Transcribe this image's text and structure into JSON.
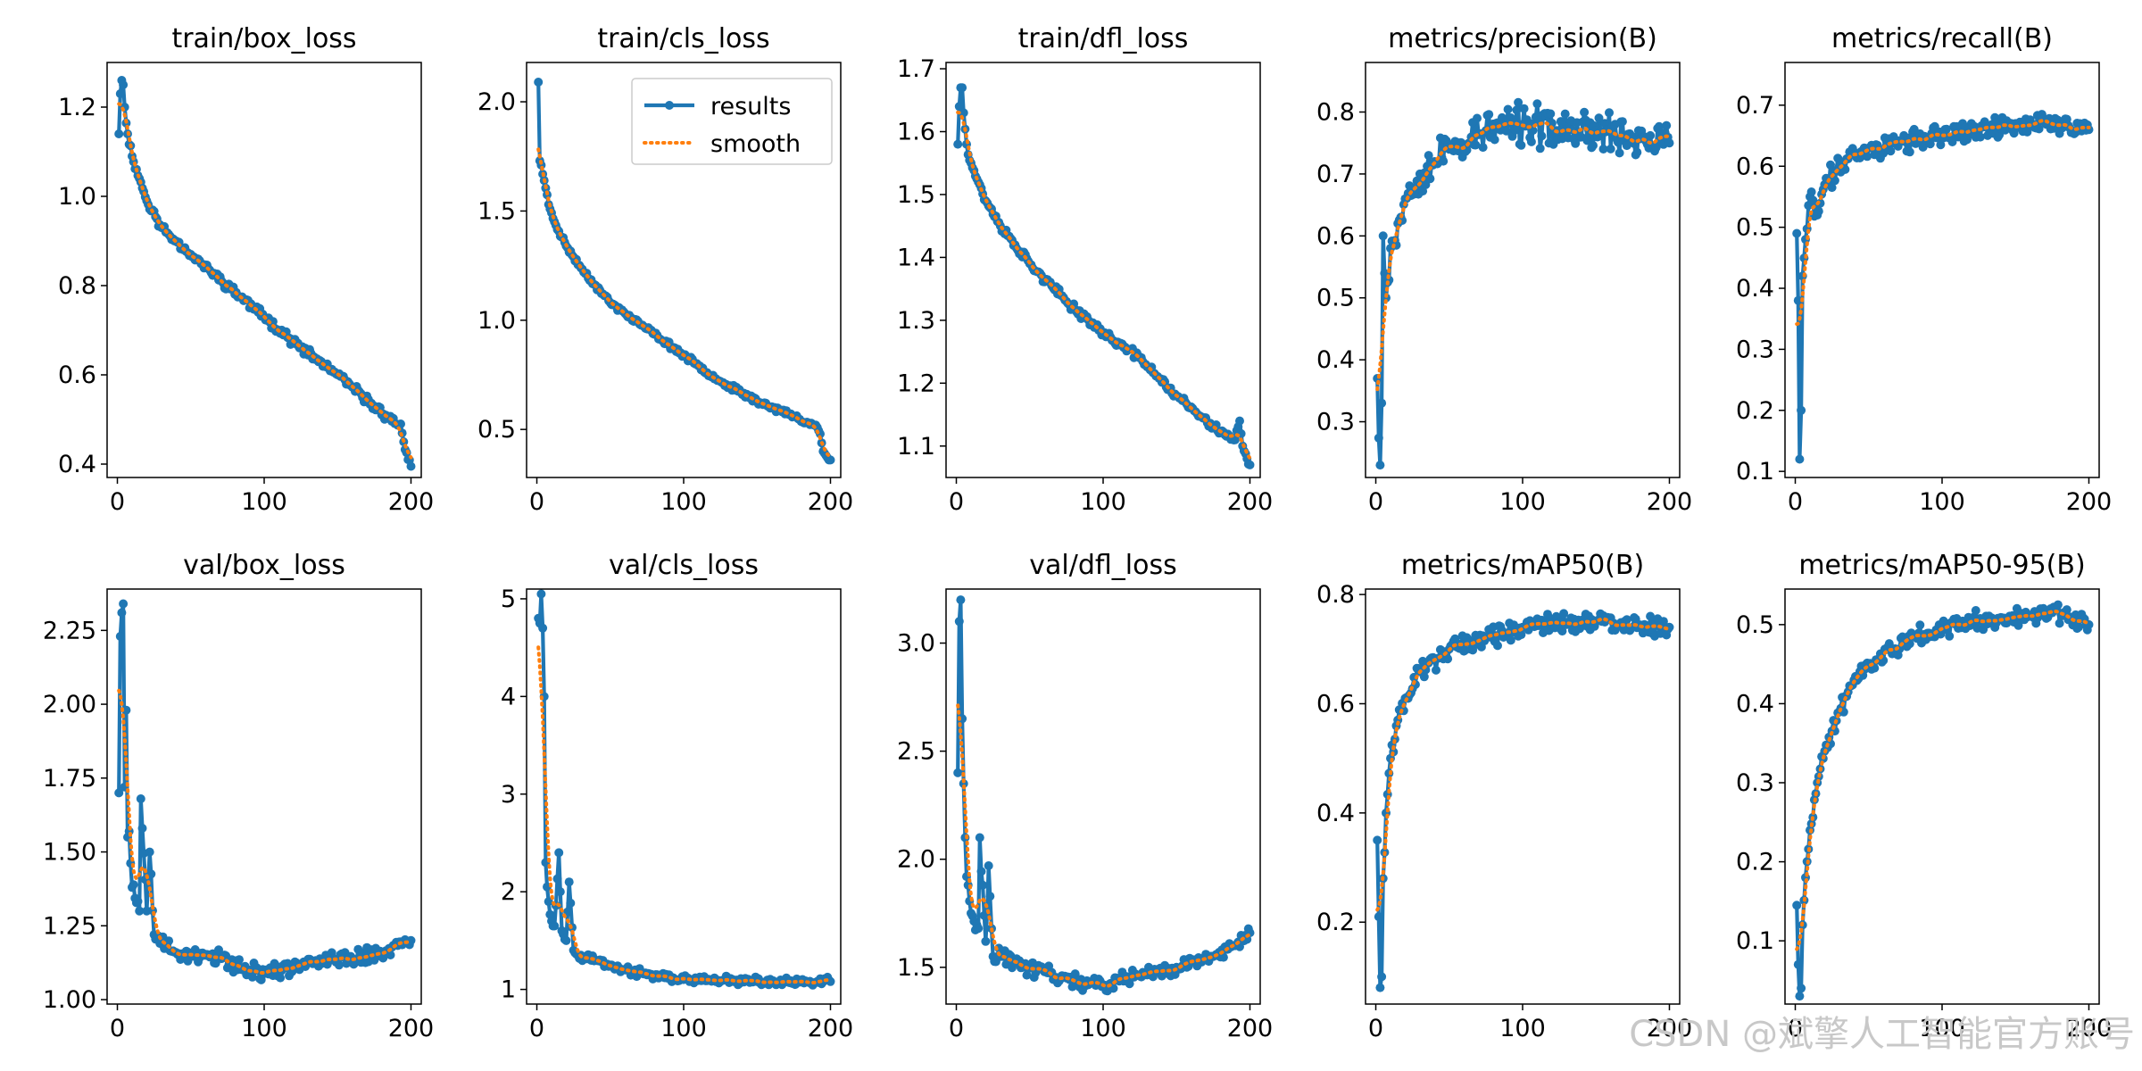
{
  "colors": {
    "results": "#1f77b4",
    "smooth": "#ff7f0e",
    "watermark": "#c8c8c8"
  },
  "legend": {
    "results_label": "results",
    "smooth_label": "smooth",
    "placement": "upper-right"
  },
  "watermark": "CSDN @斌擎人工智能官方账号",
  "chart_data": [
    {
      "id": "train-box-loss",
      "type": "line",
      "title": "train/box_loss",
      "xlim": [
        -7,
        207
      ],
      "ylim": [
        0.37,
        1.3
      ],
      "xticks": [
        0,
        100,
        200
      ],
      "yticks": [
        0.4,
        0.6,
        0.8,
        1.0,
        1.2
      ],
      "ytick_labels": [
        "0.4",
        "0.6",
        "0.8",
        "1.0",
        "1.2"
      ],
      "legend": false,
      "noise": 0.012,
      "seed": 11,
      "trend": [
        [
          1,
          1.14
        ],
        [
          2,
          1.23
        ],
        [
          3,
          1.26
        ],
        [
          4,
          1.25
        ],
        [
          5,
          1.2
        ],
        [
          7,
          1.14
        ],
        [
          10,
          1.09
        ],
        [
          15,
          1.04
        ],
        [
          20,
          0.99
        ],
        [
          30,
          0.93
        ],
        [
          40,
          0.9
        ],
        [
          50,
          0.87
        ],
        [
          75,
          0.8
        ],
        [
          100,
          0.73
        ],
        [
          125,
          0.66
        ],
        [
          150,
          0.6
        ],
        [
          175,
          0.53
        ],
        [
          190,
          0.49
        ],
        [
          193,
          0.49
        ],
        [
          195,
          0.45
        ],
        [
          198,
          0.41
        ],
        [
          200,
          0.395
        ]
      ]
    },
    {
      "id": "train-cls-loss",
      "type": "line",
      "title": "train/cls_loss",
      "xlim": [
        -7,
        207
      ],
      "ylim": [
        0.28,
        2.18
      ],
      "xticks": [
        0,
        100,
        200
      ],
      "yticks": [
        0.5,
        1.0,
        1.5,
        2.0
      ],
      "ytick_labels": [
        "0.5",
        "1.0",
        "1.5",
        "2.0"
      ],
      "legend": true,
      "noise": 0.015,
      "seed": 23,
      "trend": [
        [
          1,
          2.09
        ],
        [
          2,
          1.73
        ],
        [
          3,
          1.71
        ],
        [
          5,
          1.64
        ],
        [
          8,
          1.53
        ],
        [
          12,
          1.45
        ],
        [
          20,
          1.34
        ],
        [
          30,
          1.24
        ],
        [
          40,
          1.16
        ],
        [
          50,
          1.08
        ],
        [
          75,
          0.96
        ],
        [
          100,
          0.84
        ],
        [
          125,
          0.72
        ],
        [
          150,
          0.63
        ],
        [
          175,
          0.56
        ],
        [
          185,
          0.53
        ],
        [
          190,
          0.52
        ],
        [
          193,
          0.48
        ],
        [
          195,
          0.4
        ],
        [
          198,
          0.37
        ],
        [
          200,
          0.36
        ]
      ]
    },
    {
      "id": "train-dfl-loss",
      "type": "line",
      "title": "train/dfl_loss",
      "xlim": [
        -7,
        207
      ],
      "ylim": [
        1.05,
        1.71
      ],
      "xticks": [
        0,
        100,
        200
      ],
      "yticks": [
        1.1,
        1.2,
        1.3,
        1.4,
        1.5,
        1.6,
        1.7
      ],
      "ytick_labels": [
        "1.1",
        "1.2",
        "1.3",
        "1.4",
        "1.5",
        "1.6",
        "1.7"
      ],
      "legend": false,
      "noise": 0.008,
      "seed": 37,
      "trend": [
        [
          1,
          1.58
        ],
        [
          2,
          1.64
        ],
        [
          3,
          1.67
        ],
        [
          4,
          1.67
        ],
        [
          5,
          1.63
        ],
        [
          7,
          1.58
        ],
        [
          10,
          1.55
        ],
        [
          15,
          1.52
        ],
        [
          20,
          1.49
        ],
        [
          30,
          1.45
        ],
        [
          40,
          1.42
        ],
        [
          50,
          1.39
        ],
        [
          75,
          1.33
        ],
        [
          100,
          1.28
        ],
        [
          125,
          1.24
        ],
        [
          150,
          1.18
        ],
        [
          175,
          1.13
        ],
        [
          190,
          1.11
        ],
        [
          193,
          1.14
        ],
        [
          195,
          1.1
        ],
        [
          198,
          1.08
        ],
        [
          200,
          1.07
        ]
      ]
    },
    {
      "id": "metrics-precision-b",
      "type": "line",
      "title": "metrics/precision(B)",
      "xlim": [
        -7,
        207
      ],
      "ylim": [
        0.21,
        0.88
      ],
      "xticks": [
        0,
        100,
        200
      ],
      "yticks": [
        0.3,
        0.4,
        0.5,
        0.6,
        0.7,
        0.8
      ],
      "ytick_labels": [
        "0.3",
        "0.4",
        "0.5",
        "0.6",
        "0.7",
        "0.8"
      ],
      "legend": false,
      "noise": 0.04,
      "seed": 53,
      "trend": [
        [
          1,
          0.37
        ],
        [
          3,
          0.23
        ],
        [
          4,
          0.33
        ],
        [
          5,
          0.6
        ],
        [
          7,
          0.5
        ],
        [
          10,
          0.58
        ],
        [
          15,
          0.62
        ],
        [
          20,
          0.66
        ],
        [
          30,
          0.7
        ],
        [
          40,
          0.72
        ],
        [
          50,
          0.74
        ],
        [
          75,
          0.77
        ],
        [
          100,
          0.78
        ],
        [
          125,
          0.77
        ],
        [
          150,
          0.77
        ],
        [
          175,
          0.76
        ],
        [
          200,
          0.75
        ]
      ]
    },
    {
      "id": "metrics-recall-b",
      "type": "line",
      "title": "metrics/recall(B)",
      "xlim": [
        -7,
        207
      ],
      "ylim": [
        0.09,
        0.77
      ],
      "xticks": [
        0,
        100,
        200
      ],
      "yticks": [
        0.1,
        0.2,
        0.3,
        0.4,
        0.5,
        0.6,
        0.7
      ],
      "ytick_labels": [
        "0.1",
        "0.2",
        "0.3",
        "0.4",
        "0.5",
        "0.6",
        "0.7"
      ],
      "legend": false,
      "noise": 0.022,
      "seed": 71,
      "trend": [
        [
          1,
          0.49
        ],
        [
          2,
          0.38
        ],
        [
          3,
          0.12
        ],
        [
          4,
          0.2
        ],
        [
          5,
          0.42
        ],
        [
          7,
          0.48
        ],
        [
          10,
          0.55
        ],
        [
          15,
          0.52
        ],
        [
          20,
          0.57
        ],
        [
          30,
          0.6
        ],
        [
          40,
          0.62
        ],
        [
          50,
          0.63
        ],
        [
          75,
          0.64
        ],
        [
          100,
          0.65
        ],
        [
          125,
          0.66
        ],
        [
          150,
          0.67
        ],
        [
          175,
          0.67
        ],
        [
          200,
          0.66
        ]
      ]
    },
    {
      "id": "val-box-loss",
      "type": "line",
      "title": "val/box_loss",
      "xlim": [
        -7,
        207
      ],
      "ylim": [
        0.985,
        2.39
      ],
      "xticks": [
        0,
        100,
        200
      ],
      "yticks": [
        1.0,
        1.25,
        1.5,
        1.75,
        2.0,
        2.25
      ],
      "ytick_labels": [
        "1.00",
        "1.25",
        "1.50",
        "1.75",
        "2.00",
        "2.25"
      ],
      "legend": false,
      "noise": 0.035,
      "seed": 89,
      "trend": [
        [
          1,
          1.7
        ],
        [
          2,
          2.23
        ],
        [
          3,
          2.31
        ],
        [
          4,
          2.34
        ],
        [
          5,
          1.72
        ],
        [
          6,
          1.98
        ],
        [
          7,
          1.55
        ],
        [
          8,
          1.57
        ],
        [
          10,
          1.38
        ],
        [
          15,
          1.3
        ],
        [
          16,
          1.68
        ],
        [
          20,
          1.3
        ],
        [
          22,
          1.5
        ],
        [
          25,
          1.22
        ],
        [
          30,
          1.2
        ],
        [
          40,
          1.16
        ],
        [
          50,
          1.15
        ],
        [
          60,
          1.15
        ],
        [
          70,
          1.14
        ],
        [
          80,
          1.12
        ],
        [
          90,
          1.1
        ],
        [
          100,
          1.09
        ],
        [
          110,
          1.1
        ],
        [
          120,
          1.11
        ],
        [
          140,
          1.13
        ],
        [
          160,
          1.14
        ],
        [
          180,
          1.16
        ],
        [
          200,
          1.2
        ]
      ]
    },
    {
      "id": "val-cls-loss",
      "type": "line",
      "title": "val/cls_loss",
      "xlim": [
        -7,
        207
      ],
      "ylim": [
        0.85,
        5.1
      ],
      "xticks": [
        0,
        100,
        200
      ],
      "yticks": [
        1,
        2,
        3,
        4,
        5
      ],
      "ytick_labels": [
        "1",
        "2",
        "3",
        "4",
        "5"
      ],
      "legend": false,
      "noise": 0.05,
      "seed": 97,
      "trend": [
        [
          1,
          4.8
        ],
        [
          2,
          4.75
        ],
        [
          3,
          5.05
        ],
        [
          4,
          4.7
        ],
        [
          5,
          4.0
        ],
        [
          6,
          2.3
        ],
        [
          7,
          2.05
        ],
        [
          8,
          1.9
        ],
        [
          10,
          1.7
        ],
        [
          12,
          1.65
        ],
        [
          15,
          2.4
        ],
        [
          17,
          1.6
        ],
        [
          20,
          1.5
        ],
        [
          22,
          2.1
        ],
        [
          25,
          1.4
        ],
        [
          30,
          1.35
        ],
        [
          40,
          1.3
        ],
        [
          50,
          1.25
        ],
        [
          60,
          1.2
        ],
        [
          75,
          1.15
        ],
        [
          100,
          1.1
        ],
        [
          125,
          1.09
        ],
        [
          150,
          1.08
        ],
        [
          175,
          1.07
        ],
        [
          200,
          1.08
        ]
      ]
    },
    {
      "id": "val-dfl-loss",
      "type": "line",
      "title": "val/dfl_loss",
      "xlim": [
        -7,
        207
      ],
      "ylim": [
        1.33,
        3.25
      ],
      "xticks": [
        0,
        100,
        200
      ],
      "yticks": [
        1.5,
        2.0,
        2.5,
        3.0
      ],
      "ytick_labels": [
        "1.5",
        "2.0",
        "2.5",
        "3.0"
      ],
      "legend": false,
      "noise": 0.045,
      "seed": 113,
      "trend": [
        [
          1,
          2.4
        ],
        [
          2,
          3.1
        ],
        [
          3,
          3.2
        ],
        [
          4,
          2.65
        ],
        [
          5,
          2.35
        ],
        [
          6,
          2.1
        ],
        [
          7,
          1.92
        ],
        [
          8,
          1.88
        ],
        [
          10,
          1.75
        ],
        [
          15,
          1.68
        ],
        [
          16,
          2.1
        ],
        [
          20,
          1.62
        ],
        [
          22,
          1.97
        ],
        [
          25,
          1.55
        ],
        [
          30,
          1.55
        ],
        [
          40,
          1.52
        ],
        [
          50,
          1.5
        ],
        [
          60,
          1.48
        ],
        [
          75,
          1.45
        ],
        [
          90,
          1.42
        ],
        [
          100,
          1.42
        ],
        [
          110,
          1.44
        ],
        [
          125,
          1.46
        ],
        [
          150,
          1.5
        ],
        [
          175,
          1.55
        ],
        [
          190,
          1.6
        ],
        [
          200,
          1.66
        ]
      ]
    },
    {
      "id": "metrics-map50-b",
      "type": "line",
      "title": "metrics/mAP50(B)",
      "xlim": [
        -7,
        207
      ],
      "ylim": [
        0.05,
        0.81
      ],
      "xticks": [
        0,
        100,
        200
      ],
      "yticks": [
        0.2,
        0.4,
        0.6,
        0.8
      ],
      "ytick_labels": [
        "0.2",
        "0.4",
        "0.6",
        "0.8"
      ],
      "legend": false,
      "noise": 0.022,
      "seed": 131,
      "trend": [
        [
          1,
          0.35
        ],
        [
          2,
          0.21
        ],
        [
          3,
          0.08
        ],
        [
          4,
          0.1
        ],
        [
          5,
          0.28
        ],
        [
          7,
          0.4
        ],
        [
          10,
          0.5
        ],
        [
          15,
          0.57
        ],
        [
          20,
          0.61
        ],
        [
          30,
          0.66
        ],
        [
          40,
          0.68
        ],
        [
          50,
          0.7
        ],
        [
          75,
          0.72
        ],
        [
          100,
          0.74
        ],
        [
          125,
          0.75
        ],
        [
          150,
          0.75
        ],
        [
          175,
          0.74
        ],
        [
          200,
          0.74
        ]
      ]
    },
    {
      "id": "metrics-map50-95-b",
      "type": "line",
      "title": "metrics/mAP50-95(B)",
      "xlim": [
        -7,
        207
      ],
      "ylim": [
        0.02,
        0.545
      ],
      "xticks": [
        0,
        100,
        200
      ],
      "yticks": [
        0.1,
        0.2,
        0.3,
        0.4,
        0.5
      ],
      "ytick_labels": [
        "0.1",
        "0.2",
        "0.3",
        "0.4",
        "0.5"
      ],
      "legend": false,
      "noise": 0.014,
      "seed": 149,
      "trend": [
        [
          1,
          0.145
        ],
        [
          2,
          0.07
        ],
        [
          3,
          0.03
        ],
        [
          4,
          0.04
        ],
        [
          5,
          0.12
        ],
        [
          7,
          0.18
        ],
        [
          10,
          0.24
        ],
        [
          15,
          0.3
        ],
        [
          20,
          0.34
        ],
        [
          30,
          0.39
        ],
        [
          40,
          0.43
        ],
        [
          50,
          0.45
        ],
        [
          75,
          0.48
        ],
        [
          100,
          0.495
        ],
        [
          125,
          0.505
        ],
        [
          150,
          0.51
        ],
        [
          175,
          0.515
        ],
        [
          200,
          0.5
        ]
      ]
    }
  ]
}
